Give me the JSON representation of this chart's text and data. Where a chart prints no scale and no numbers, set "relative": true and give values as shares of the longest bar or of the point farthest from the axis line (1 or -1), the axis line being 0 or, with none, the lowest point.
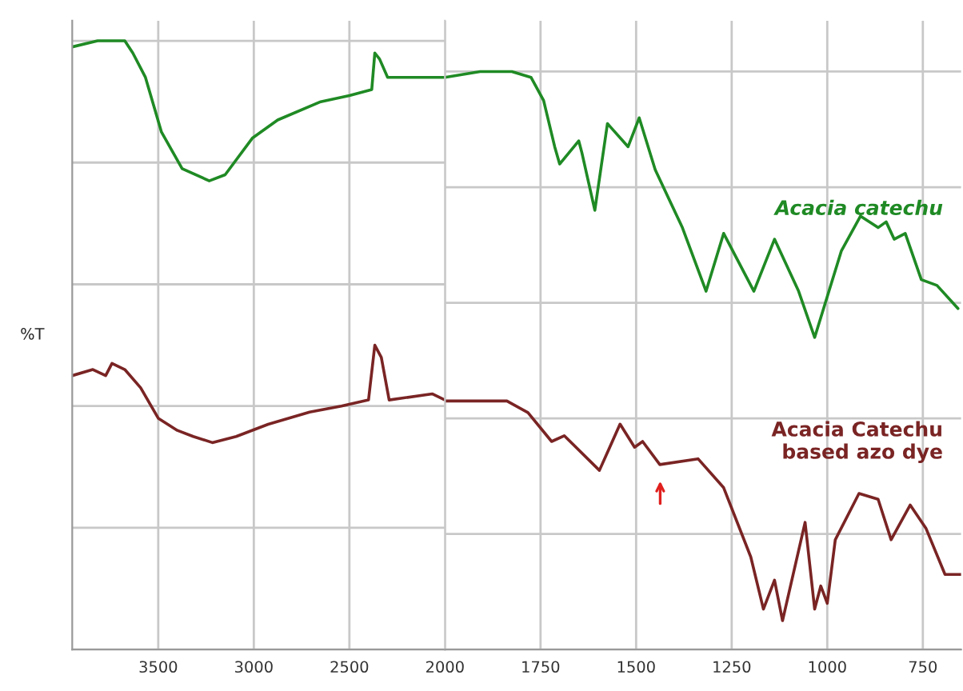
{
  "chart_data": [
    {
      "type": "line",
      "ylabel": "%T",
      "relative": true,
      "grid": true,
      "legend": false,
      "xlim": [
        3950,
        2000
      ],
      "xticks": [
        3500,
        3000,
        2500
      ],
      "series": [
        {
          "color": "#1f8a24",
          "x": [
            3950,
            3817,
            3675,
            3633,
            3567,
            3483,
            3375,
            3233,
            3150,
            3008,
            2875,
            2650,
            2500,
            2383,
            2367,
            2342,
            2300,
            2092,
            2000
          ],
          "values": [
            0.99,
            1.0,
            1.0,
            0.98,
            0.94,
            0.85,
            0.79,
            0.77,
            0.78,
            0.84,
            0.87,
            0.9,
            0.91,
            0.92,
            0.98,
            0.97,
            0.94,
            0.94,
            0.94
          ]
        },
        {
          "color": "#7a2424",
          "x": [
            3950,
            3842,
            3775,
            3742,
            3675,
            3592,
            3500,
            3400,
            3317,
            3217,
            3092,
            2925,
            2708,
            2542,
            2400,
            2367,
            2333,
            2292,
            2067,
            2000
          ],
          "values": [
            0.45,
            0.46,
            0.45,
            0.47,
            0.46,
            0.43,
            0.38,
            0.36,
            0.35,
            0.34,
            0.35,
            0.37,
            0.39,
            0.4,
            0.41,
            0.5,
            0.48,
            0.41,
            0.42,
            0.41
          ]
        }
      ]
    },
    {
      "type": "line",
      "relative": true,
      "grid": true,
      "legend": false,
      "xlim": [
        2000,
        650
      ],
      "xticks": [
        2000,
        1750,
        1500,
        1250,
        1000,
        750
      ],
      "series": [
        {
          "name": "Acacia catechu",
          "color": "#1f8a24",
          "x": [
            2000,
            1908,
            1825,
            1775,
            1742,
            1713,
            1700,
            1650,
            1642,
            1608,
            1575,
            1521,
            1492,
            1450,
            1379,
            1317,
            1271,
            1192,
            1138,
            1075,
            1033,
            963,
            913,
            867,
            846,
            825,
            796,
            754,
            713,
            658
          ],
          "values": [
            0.99,
            1.0,
            1.0,
            0.99,
            0.95,
            0.87,
            0.84,
            0.88,
            0.86,
            0.76,
            0.91,
            0.87,
            0.92,
            0.83,
            0.73,
            0.62,
            0.72,
            0.62,
            0.71,
            0.62,
            0.54,
            0.69,
            0.75,
            0.73,
            0.74,
            0.71,
            0.72,
            0.64,
            0.63,
            0.59
          ]
        },
        {
          "name": "Acacia Catechu\nbased azo dye",
          "color": "#7a2424",
          "x": [
            2000,
            1908,
            1838,
            1783,
            1721,
            1688,
            1596,
            1542,
            1504,
            1483,
            1438,
            1338,
            1271,
            1200,
            1167,
            1138,
            1117,
            1058,
            1033,
            1017,
            1000,
            979,
            917,
            867,
            833,
            783,
            742,
            692,
            650
          ],
          "values": [
            0.43,
            0.43,
            0.43,
            0.41,
            0.36,
            0.37,
            0.31,
            0.39,
            0.35,
            0.36,
            0.32,
            0.33,
            0.28,
            0.16,
            0.07,
            0.12,
            0.05,
            0.22,
            0.07,
            0.11,
            0.08,
            0.19,
            0.27,
            0.26,
            0.19,
            0.25,
            0.21,
            0.13,
            0.13
          ]
        }
      ]
    }
  ]
}
